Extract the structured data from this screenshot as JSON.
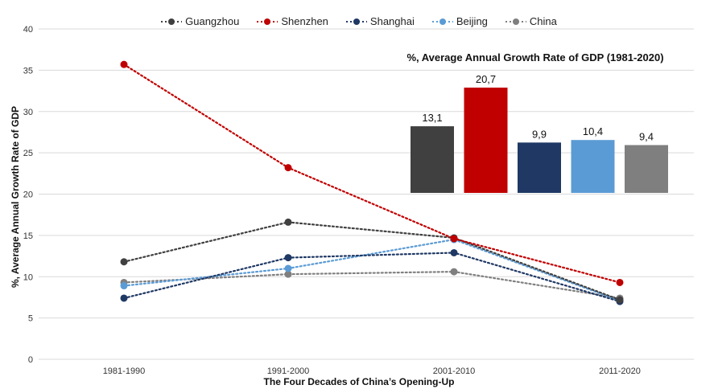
{
  "chart_data": [
    {
      "type": "line",
      "title": "",
      "xlabel": "The Four Decades of China’s Opening-Up",
      "ylabel": "%, Average Annual Growth Rate of GDP",
      "categories": [
        "1981-1990",
        "1991-2000",
        "2001-2010",
        "2011-2020"
      ],
      "ylim": [
        0,
        40
      ],
      "yticks": [
        "0",
        "5",
        "10",
        "15",
        "20",
        "25",
        "30",
        "35",
        "40"
      ],
      "grid": true,
      "legend": "top",
      "series": [
        {
          "name": "Guangzhou",
          "color": "#404040",
          "values": [
            11.8,
            16.6,
            14.7,
            7.2
          ]
        },
        {
          "name": "Shenzhen",
          "color": "#c00000",
          "values": [
            35.7,
            23.2,
            14.6,
            9.3
          ]
        },
        {
          "name": "Shanghai",
          "color": "#1f3864",
          "values": [
            7.4,
            12.3,
            12.9,
            7.0
          ]
        },
        {
          "name": "Beijing",
          "color": "#5b9bd5",
          "values": [
            8.9,
            11.0,
            14.5,
            7.1
          ]
        },
        {
          "name": "China",
          "color": "#7f7f7f",
          "values": [
            9.3,
            10.3,
            10.6,
            7.4
          ]
        }
      ]
    },
    {
      "type": "bar",
      "title": "%, Average Annual Growth Rate of GDP (1981-2020)",
      "categories": [
        "Guangzhou",
        "Shenzhen",
        "Shanghai",
        "Beijing",
        "China"
      ],
      "values": [
        13.1,
        20.7,
        9.9,
        10.4,
        9.4
      ],
      "labels": [
        "13,1",
        "20,7",
        "9,9",
        "10,4",
        "9,4"
      ],
      "colors": [
        "#404040",
        "#c00000",
        "#1f3864",
        "#5b9bd5",
        "#7f7f7f"
      ]
    }
  ]
}
